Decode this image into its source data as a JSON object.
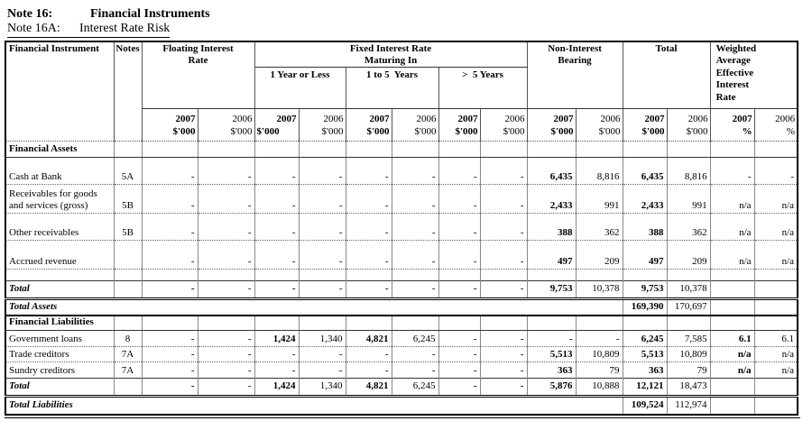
{
  "title": {
    "note": "Note 16:",
    "label": "Financial Instruments"
  },
  "subtitle": {
    "note": "Note 16A:",
    "label": "Interest Rate Risk"
  },
  "table": {
    "header": {
      "financial_instrument": "Financial Instrument",
      "notes": "Notes",
      "floating": "Floating Interest\nRate",
      "fixed": "Fixed Interest Rate\nMaturing In",
      "maturity": [
        "1 Year or Less",
        "1 to 5  Years",
        ">  5 Years"
      ],
      "non_interest": "Non-Interest\nBearing",
      "total": "Total",
      "weighted": "Weighted\nAverage\nEffective\nInterest\nRate",
      "year_2007": "2007",
      "year_2006": "2006",
      "unit_thousands": "$'000",
      "unit_percent": "%"
    },
    "rows": [
      {
        "type": "section",
        "label": "Financial Assets"
      },
      {
        "type": "data",
        "label": "Cash at Bank",
        "note": "5A",
        "cells": [
          "-",
          "-",
          "-",
          "-",
          "-",
          "-",
          "-",
          "-",
          "6,435",
          "8,816",
          "6,435",
          "8,816",
          "-",
          "-"
        ],
        "w07_bold": false
      },
      {
        "type": "data",
        "label": "Receivables for goods and services (gross)",
        "note": "5B",
        "cells": [
          "-",
          "-",
          "-",
          "-",
          "-",
          "-",
          "-",
          "-",
          "2,433",
          "991",
          "2,433",
          "991",
          "n/a",
          "n/a"
        ],
        "w07_bold": false
      },
      {
        "type": "data",
        "label": "Other receivables",
        "note": "5B",
        "cells": [
          "-",
          "-",
          "-",
          "-",
          "-",
          "-",
          "-",
          "-",
          "388",
          "362",
          "388",
          "362",
          "n/a",
          "n/a"
        ],
        "w07_bold": false
      },
      {
        "type": "data",
        "label": "Accrued revenue",
        "note": "",
        "cells": [
          "-",
          "-",
          "-",
          "-",
          "-",
          "-",
          "-",
          "-",
          "497",
          "209",
          "497",
          "209",
          "n/a",
          "n/a"
        ],
        "w07_bold": false
      },
      {
        "type": "spacer"
      },
      {
        "type": "total",
        "label": "Total",
        "note": "",
        "cells": [
          "-",
          "-",
          "-",
          "-",
          "-",
          "-",
          "-",
          "-",
          "9,753",
          "10,378",
          "9,753",
          "10,378",
          "",
          ""
        ]
      },
      {
        "type": "grand",
        "label": "Total Assets",
        "t07": "169,390",
        "t06": "170,697"
      },
      {
        "type": "section",
        "label": "Financial Liabilities"
      },
      {
        "type": "data",
        "label": "Government loans",
        "note": "8",
        "cells": [
          "-",
          "-",
          "1,424",
          "1,340",
          "4,821",
          "6,245",
          "-",
          "-",
          "-",
          "-",
          "6,245",
          "7,585",
          "6.1",
          "6.1"
        ],
        "w07_bold": true
      },
      {
        "type": "data",
        "label": "Trade creditors",
        "note": "7A",
        "cells": [
          "-",
          "-",
          "-",
          "-",
          "-",
          "-",
          "-",
          "-",
          "5,513",
          "10,809",
          "5,513",
          "10,809",
          "n/a",
          "n/a"
        ],
        "w07_bold": true
      },
      {
        "type": "data",
        "label": "Sundry creditors",
        "note": "7A",
        "cells": [
          "-",
          "-",
          "-",
          "-",
          "-",
          "-",
          "-",
          "-",
          "363",
          "79",
          "363",
          "79",
          "n/a",
          "n/a"
        ],
        "w07_bold": true
      },
      {
        "type": "total",
        "label": "Total",
        "note": "",
        "cells": [
          "-",
          "-",
          "1,424",
          "1,340",
          "4,821",
          "6,245",
          "-",
          "-",
          "5,876",
          "10,888",
          "12,121",
          "18,473",
          "",
          ""
        ]
      },
      {
        "type": "grand",
        "label": "Total Liabilities",
        "t07": "109,524",
        "t06": "112,974"
      }
    ]
  }
}
